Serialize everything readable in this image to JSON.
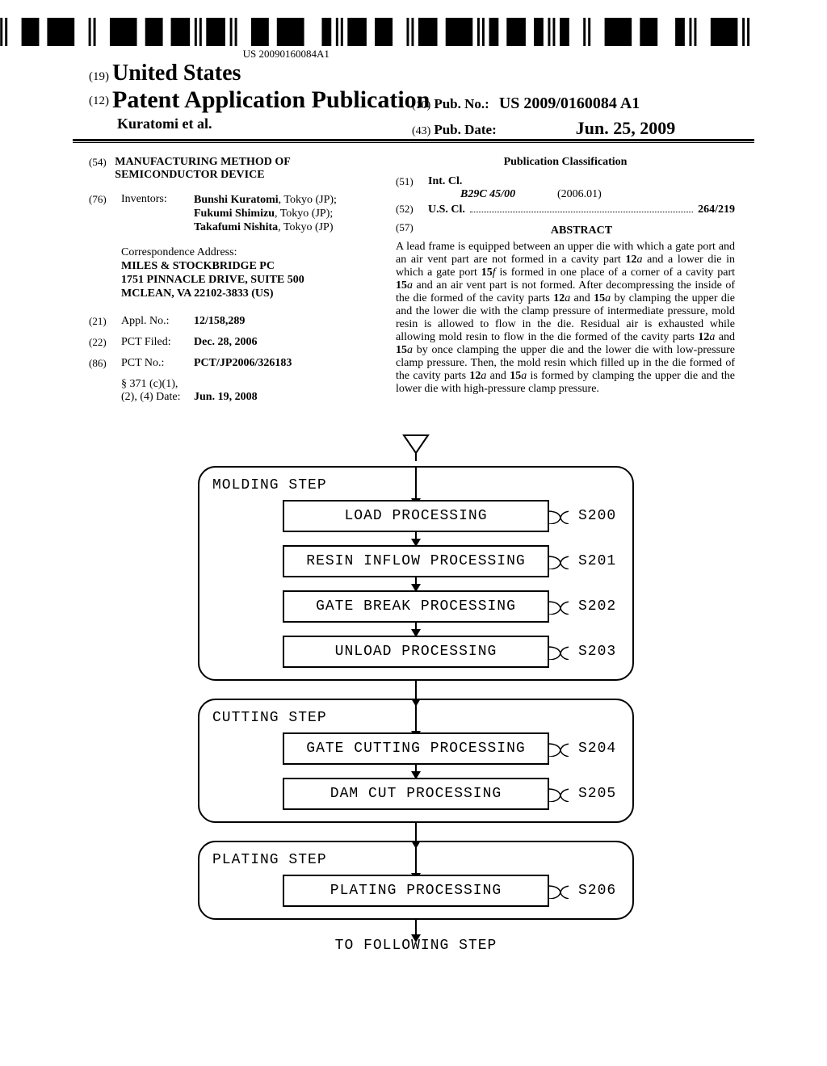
{
  "barcode_text": "US 20090160084A1",
  "header": {
    "code19": "(19)",
    "country": "United States",
    "code12": "(12)",
    "pub_type": "Patent Application Publication",
    "authors": "Kuratomi et al.",
    "code10": "(10)",
    "pub_no_label": "Pub. No.:",
    "pub_no": "US 2009/0160084 A1",
    "code43": "(43)",
    "pub_date_label": "Pub. Date:",
    "pub_date": "Jun. 25, 2009"
  },
  "left": {
    "title_code": "(54)",
    "title": "MANUFACTURING METHOD OF SEMICONDUCTOR DEVICE",
    "inventors_code": "(76)",
    "inventors_label": "Inventors:",
    "inventors": [
      {
        "name": "Bunshi Kuratomi",
        "loc": "Tokyo (JP);"
      },
      {
        "name": "Fukumi Shimizu",
        "loc": "Tokyo (JP);"
      },
      {
        "name": "Takafumi Nishita",
        "loc": "Tokyo (JP)"
      }
    ],
    "correspondence_label": "Correspondence Address:",
    "correspondence": [
      "MILES & STOCKBRIDGE PC",
      "1751 PINNACLE DRIVE, SUITE 500",
      "MCLEAN, VA 22102-3833 (US)"
    ],
    "applno_code": "(21)",
    "applno_label": "Appl. No.:",
    "applno": "12/158,289",
    "pctfiled_code": "(22)",
    "pctfiled_label": "PCT Filed:",
    "pctfiled": "Dec. 28, 2006",
    "pctno_code": "(86)",
    "pctno_label": "PCT No.:",
    "pctno": "PCT/JP2006/326183",
    "s371_label1": "§ 371 (c)(1),",
    "s371_label2": "(2), (4) Date:",
    "s371_date": "Jun. 19, 2008"
  },
  "right": {
    "pub_class": "Publication Classification",
    "intcl_code": "(51)",
    "intcl_label": "Int. Cl.",
    "intcl_class": "B29C 45/00",
    "intcl_year": "(2006.01)",
    "uscl_code": "(52)",
    "uscl_label": "U.S. Cl.",
    "uscl_val": "264/219",
    "abstract_code": "(57)",
    "abstract_label": "ABSTRACT",
    "abstract": "A lead frame is equipped between an upper die with which a gate port and an air vent part are not formed in a cavity part 12a and a lower die in which a gate port 15f is formed in one place of a corner of a cavity part 15a and an air vent part is not formed. After decompressing the inside of the die formed of the cavity parts 12a and 15a by clamping the upper die and the lower die with the clamp pressure of intermediate pressure, mold resin is allowed to flow in the die. Residual air is exhausted while allowing mold resin to flow in the die formed of the cavity parts 12a and 15a by once clamping the upper die and the lower die with low-pressure clamp pressure. Then, the mold resin which filled up in the die formed of the cavity parts 12a and 15a is formed by clamping the upper die and the lower die with high-pressure clamp pressure."
  },
  "flowchart": {
    "groups": [
      {
        "label": "MOLDING STEP",
        "steps": [
          {
            "text": "LOAD PROCESSING",
            "id": "S200"
          },
          {
            "text": "RESIN INFLOW PROCESSING",
            "id": "S201"
          },
          {
            "text": "GATE BREAK PROCESSING",
            "id": "S202"
          },
          {
            "text": "UNLOAD PROCESSING",
            "id": "S203"
          }
        ]
      },
      {
        "label": "CUTTING STEP",
        "steps": [
          {
            "text": "GATE CUTTING PROCESSING",
            "id": "S204"
          },
          {
            "text": "DAM CUT PROCESSING",
            "id": "S205"
          }
        ]
      },
      {
        "label": "PLATING STEP",
        "steps": [
          {
            "text": "PLATING PROCESSING",
            "id": "S206"
          }
        ]
      }
    ],
    "final": "TO FOLLOWING STEP"
  }
}
